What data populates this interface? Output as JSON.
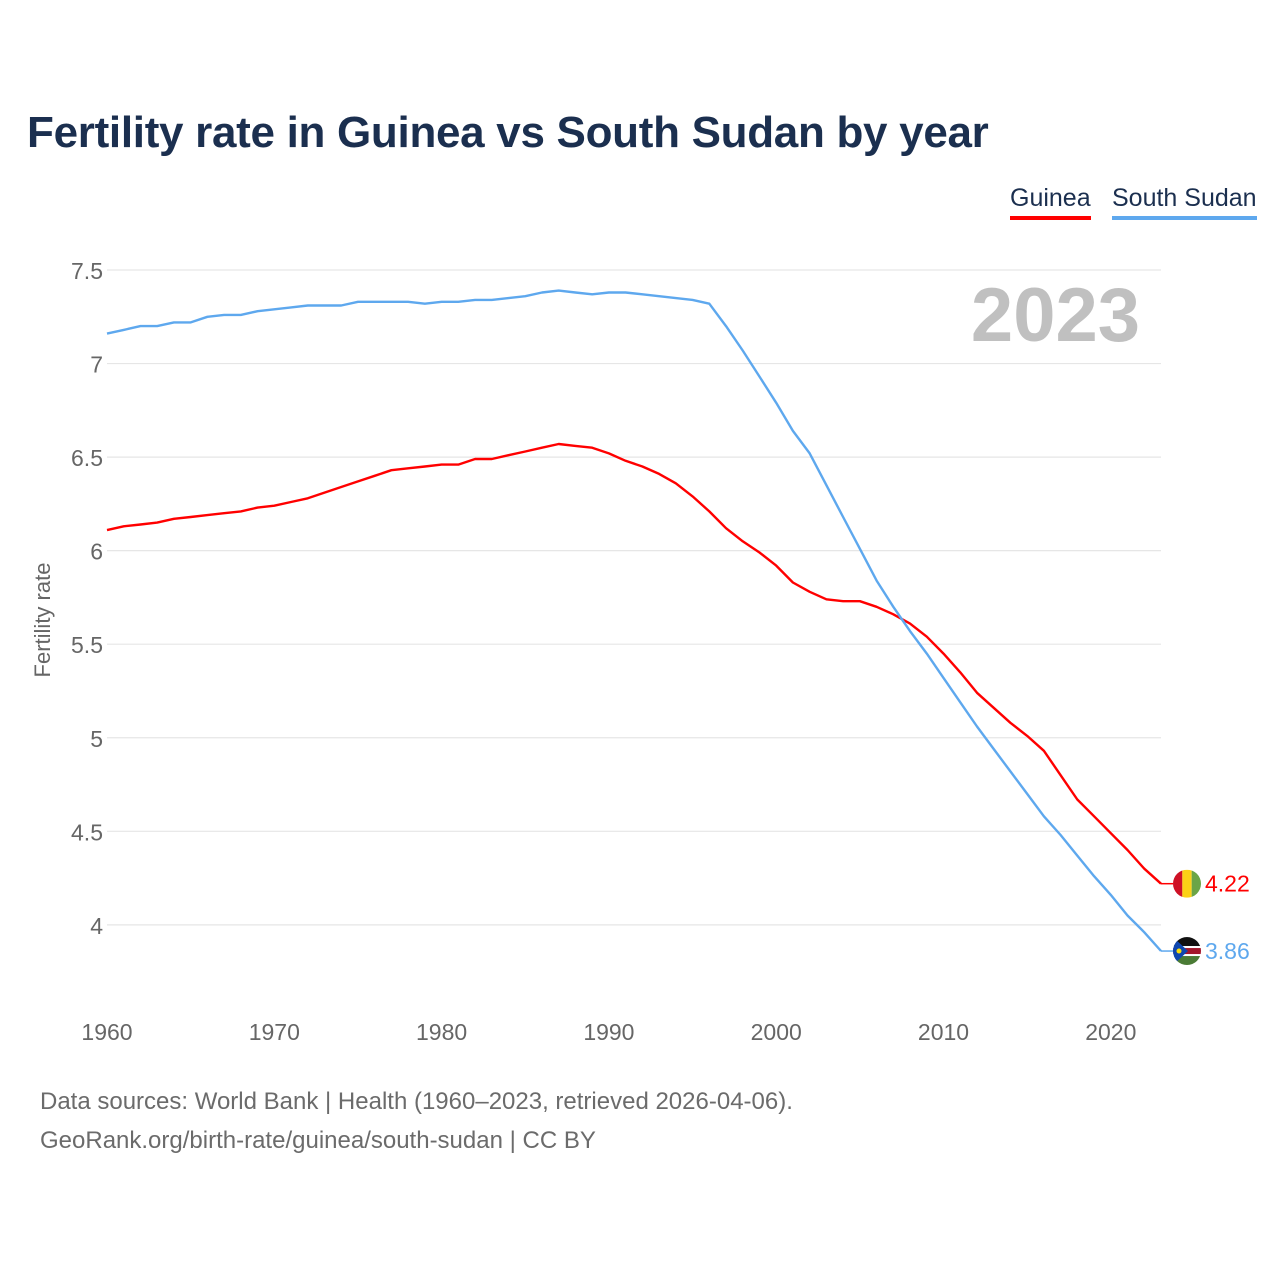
{
  "chart_data": {
    "type": "line",
    "title": "Fertility rate in Guinea vs South Sudan by year",
    "xlabel": "",
    "ylabel": "Fertility rate",
    "xlim": [
      1960,
      2023
    ],
    "ylim": [
      3.7,
      7.6
    ],
    "yticks": [
      4,
      4.5,
      5,
      5.5,
      6,
      6.5,
      7,
      7.5
    ],
    "ytick_labels": [
      "4",
      "4.5",
      "5",
      "5.5",
      "6",
      "6.5",
      "7",
      "7.5"
    ],
    "xticks": [
      1960,
      1970,
      1980,
      1990,
      2000,
      2010,
      2020
    ],
    "xtick_labels": [
      "1960",
      "1970",
      "1980",
      "1990",
      "2000",
      "2010",
      "2020"
    ],
    "grid": true,
    "legend_position": "top-right",
    "year_label": "2023",
    "x": [
      1960,
      1961,
      1962,
      1963,
      1964,
      1965,
      1966,
      1967,
      1968,
      1969,
      1970,
      1971,
      1972,
      1973,
      1974,
      1975,
      1976,
      1977,
      1978,
      1979,
      1980,
      1981,
      1982,
      1983,
      1984,
      1985,
      1986,
      1987,
      1988,
      1989,
      1990,
      1991,
      1992,
      1993,
      1994,
      1995,
      1996,
      1997,
      1998,
      1999,
      2000,
      2001,
      2002,
      2003,
      2004,
      2005,
      2006,
      2007,
      2008,
      2009,
      2010,
      2011,
      2012,
      2013,
      2014,
      2015,
      2016,
      2017,
      2018,
      2019,
      2020,
      2021,
      2022,
      2023
    ],
    "series": [
      {
        "name": "Guinea",
        "color": "#ff0000",
        "end_label": "4.22",
        "flag": "guinea-flag",
        "values": [
          6.11,
          6.13,
          6.14,
          6.15,
          6.17,
          6.18,
          6.19,
          6.2,
          6.21,
          6.23,
          6.24,
          6.26,
          6.28,
          6.31,
          6.34,
          6.37,
          6.4,
          6.43,
          6.44,
          6.45,
          6.46,
          6.46,
          6.49,
          6.49,
          6.51,
          6.53,
          6.55,
          6.57,
          6.56,
          6.55,
          6.52,
          6.48,
          6.45,
          6.41,
          6.36,
          6.29,
          6.21,
          6.12,
          6.05,
          5.99,
          5.92,
          5.83,
          5.78,
          5.74,
          5.73,
          5.73,
          5.7,
          5.66,
          5.61,
          5.54,
          5.45,
          5.35,
          5.24,
          5.16,
          5.08,
          5.01,
          4.93,
          4.8,
          4.67,
          4.58,
          4.49,
          4.4,
          4.3,
          4.22
        ]
      },
      {
        "name": "South Sudan",
        "color": "#5ea8ee",
        "end_label": "3.86",
        "flag": "south-sudan-flag",
        "values": [
          7.16,
          7.18,
          7.2,
          7.2,
          7.22,
          7.22,
          7.25,
          7.26,
          7.26,
          7.28,
          7.29,
          7.3,
          7.31,
          7.31,
          7.31,
          7.33,
          7.33,
          7.33,
          7.33,
          7.32,
          7.33,
          7.33,
          7.34,
          7.34,
          7.35,
          7.36,
          7.38,
          7.39,
          7.38,
          7.37,
          7.38,
          7.38,
          7.37,
          7.36,
          7.35,
          7.34,
          7.32,
          7.2,
          7.07,
          6.93,
          6.79,
          6.64,
          6.52,
          6.35,
          6.18,
          6.01,
          5.84,
          5.7,
          5.57,
          5.45,
          5.32,
          5.19,
          5.06,
          4.94,
          4.82,
          4.7,
          4.58,
          4.48,
          4.37,
          4.26,
          4.16,
          4.05,
          3.96,
          3.86
        ]
      }
    ]
  },
  "footer": {
    "sources": "Data sources: World Bank | Health (1960–2023, retrieved 2026-04-06).",
    "credit": "GeoRank.org/birth-rate/guinea/south-sudan | CC BY"
  }
}
